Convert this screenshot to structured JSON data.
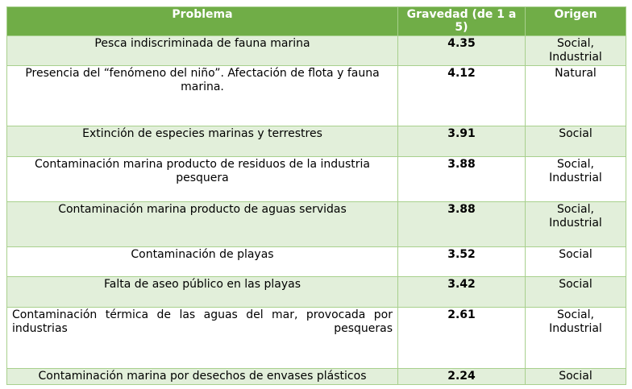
{
  "header": {
    "problema": "Problema",
    "gravedad": "Gravedad (de 1 a 5)",
    "origen": "Origen"
  },
  "rows": [
    {
      "problema": "Pesca indiscriminada de fauna marina",
      "gravedad": "4.35",
      "origen": "Social, Industrial"
    },
    {
      "problema": "Presencia del “fenómeno del niño”. Afectación de flota y fauna marina.",
      "gravedad": "4.12",
      "origen": "Natural"
    },
    {
      "problema": "Extinción de especies marinas y terrestres",
      "gravedad": "3.91",
      "origen": "Social"
    },
    {
      "problema": "Contaminación marina producto de residuos de la industria pesquera",
      "gravedad": "3.88",
      "origen": "Social, Industrial"
    },
    {
      "problema": "Contaminación marina producto de aguas servidas",
      "gravedad": "3.88",
      "origen": "Social, Industrial"
    },
    {
      "problema": "Contaminación de playas",
      "gravedad": "3.52",
      "origen": "Social"
    },
    {
      "problema": "Falta de aseo público en las playas",
      "gravedad": "3.42",
      "origen": "Social"
    },
    {
      "problema": "Contaminación térmica de las aguas del mar, provocada por industrias pesqueras",
      "gravedad": "2.61",
      "origen": "Social, Industrial"
    },
    {
      "problema": "Contaminación marina por desechos de envases plásticos",
      "gravedad": "2.24",
      "origen": "Social"
    }
  ]
}
